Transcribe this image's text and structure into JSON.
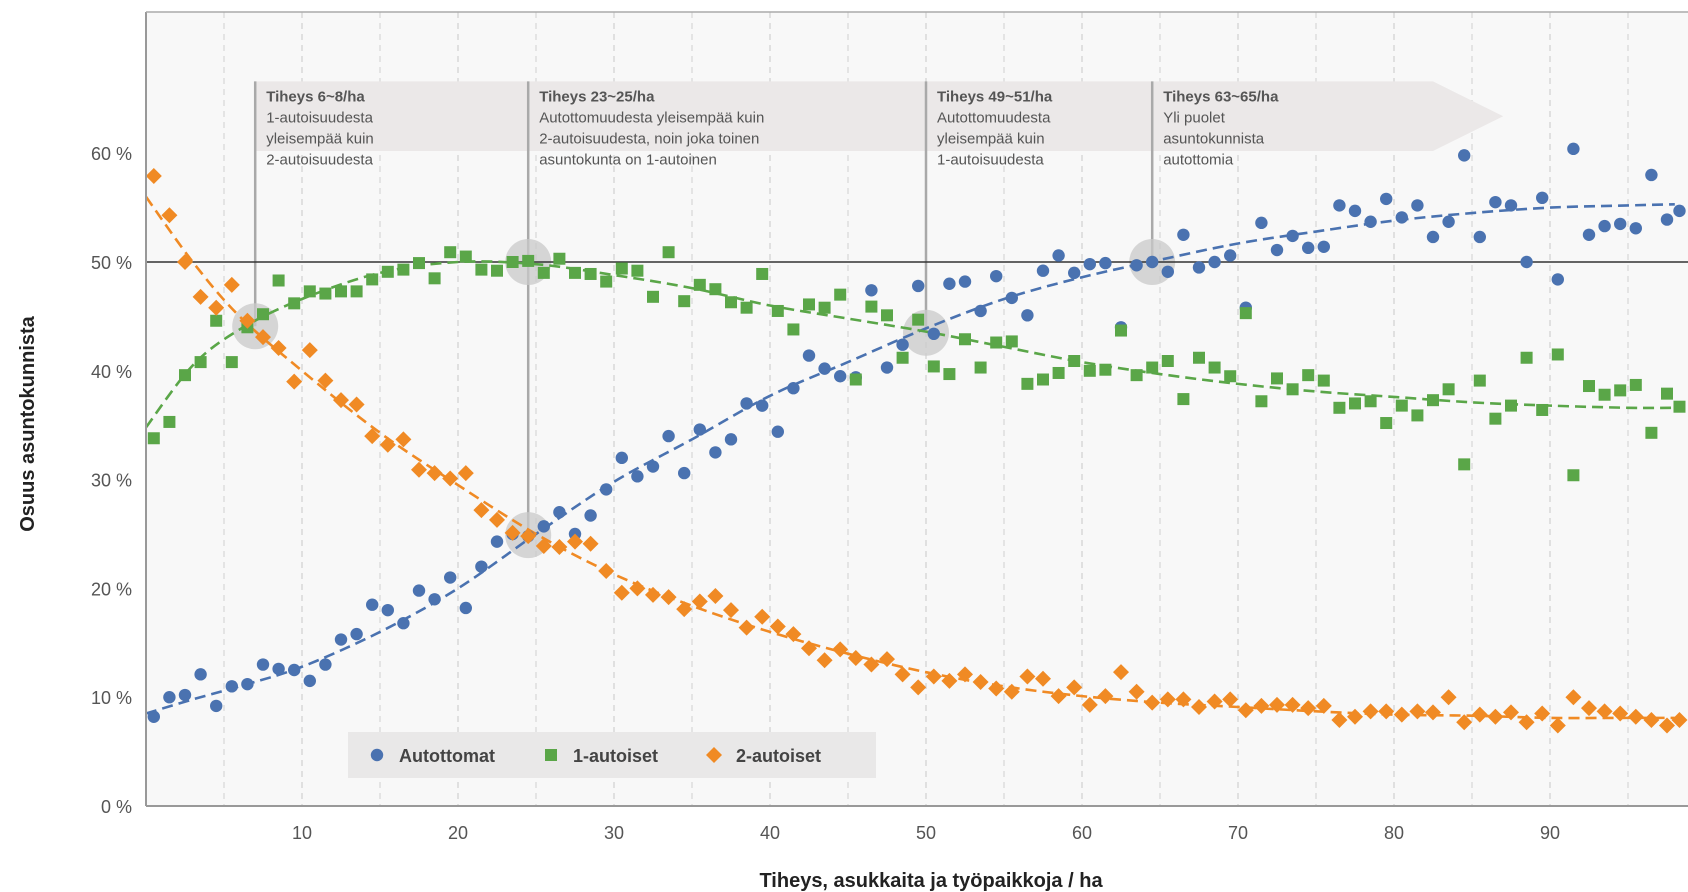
{
  "chart_data": {
    "type": "scatter",
    "xlabel": "Tiheys, asukkaita ja työpaikkoja / ha",
    "ylabel": "Osuus asuntokunnista",
    "xlim": [
      0,
      98
    ],
    "ylim": [
      0,
      72
    ],
    "x_ticks": [
      10,
      20,
      30,
      40,
      50,
      60,
      70,
      80,
      90
    ],
    "y_ticks": [
      {
        "value": 0,
        "label": "0 %"
      },
      {
        "value": 10,
        "label": "10 %"
      },
      {
        "value": 20,
        "label": "20 %"
      },
      {
        "value": 30,
        "label": "30 %"
      },
      {
        "value": 40,
        "label": "40 %"
      },
      {
        "value": 50,
        "label": "50 %"
      },
      {
        "value": 60,
        "label": "60 %"
      }
    ],
    "reference_line": 50,
    "grid": "vertical dashed",
    "legend_position": "bottom-left",
    "series": [
      {
        "name": "Autottomat",
        "color": "#4a72b0",
        "marker": "circle",
        "x": [
          0.5,
          1.5,
          2.5,
          3.5,
          4.5,
          5.5,
          6.5,
          7.5,
          8.5,
          9.5,
          10.5,
          11.5,
          12.5,
          13.5,
          14.5,
          15.5,
          16.5,
          17.5,
          18.5,
          19.5,
          20.5,
          21.5,
          22.5,
          23.5,
          24.5,
          25.5,
          26.5,
          27.5,
          28.5,
          29.5,
          30.5,
          31.5,
          32.5,
          33.5,
          34.5,
          35.5,
          36.5,
          37.5,
          38.5,
          39.5,
          40.5,
          41.5,
          42.5,
          43.5,
          44.5,
          45.5,
          46.5,
          47.5,
          48.5,
          49.5,
          50.5,
          51.5,
          52.5,
          53.5,
          54.5,
          55.5,
          56.5,
          57.5,
          58.5,
          59.5,
          60.5,
          61.5,
          62.5,
          63.5,
          64.5,
          65.5,
          66.5,
          67.5,
          68.5,
          69.5,
          70.5,
          71.5,
          72.5,
          73.5,
          74.5,
          75.5,
          76.5,
          77.5,
          78.5,
          79.5,
          80.5,
          81.5,
          82.5,
          83.5,
          84.5,
          85.5,
          86.5,
          87.5,
          88.5,
          89.5,
          90.5,
          91.5,
          92.5,
          93.5,
          94.5,
          95.5,
          96.5,
          97.5,
          98.3
        ],
        "values": [
          8.2,
          10,
          10.2,
          12.1,
          9.2,
          11,
          11.2,
          13,
          12.6,
          12.5,
          11.5,
          13,
          15.3,
          15.8,
          18.5,
          18,
          16.8,
          19.8,
          19,
          21,
          18.2,
          22,
          24.3,
          25,
          24.8,
          25.7,
          27,
          25,
          26.7,
          29.1,
          32,
          30.3,
          31.2,
          34,
          30.6,
          34.6,
          32.5,
          33.7,
          37,
          36.8,
          34.4,
          38.4,
          41.4,
          40.2,
          39.5,
          39.4,
          47.4,
          40.3,
          42.4,
          47.8,
          43.4,
          48,
          48.2,
          45.5,
          48.7,
          46.7,
          45.1,
          49.2,
          50.6,
          49,
          49.8,
          49.9,
          44,
          49.7,
          50,
          49.1,
          52.5,
          49.5,
          50,
          50.6,
          45.8,
          53.6,
          51.1,
          52.4,
          51.3,
          51.4,
          55.2,
          54.7,
          53.7,
          55.8,
          54.1,
          55.2,
          52.3,
          53.7,
          59.8,
          52.3,
          55.5,
          55.2,
          50,
          55.9,
          48.4,
          60.4,
          52.5,
          53.3,
          53.5,
          53.1,
          58,
          53.9,
          54.7
        ]
      },
      {
        "name": "1-autoiset",
        "color": "#5aa648",
        "marker": "square",
        "x": [
          0.5,
          1.5,
          2.5,
          3.5,
          4.5,
          5.5,
          6.5,
          7.5,
          8.5,
          9.5,
          10.5,
          11.5,
          12.5,
          13.5,
          14.5,
          15.5,
          16.5,
          17.5,
          18.5,
          19.5,
          20.5,
          21.5,
          22.5,
          23.5,
          24.5,
          25.5,
          26.5,
          27.5,
          28.5,
          29.5,
          30.5,
          31.5,
          32.5,
          33.5,
          34.5,
          35.5,
          36.5,
          37.5,
          38.5,
          39.5,
          40.5,
          41.5,
          42.5,
          43.5,
          44.5,
          45.5,
          46.5,
          47.5,
          48.5,
          49.5,
          50.5,
          51.5,
          52.5,
          53.5,
          54.5,
          55.5,
          56.5,
          57.5,
          58.5,
          59.5,
          60.5,
          61.5,
          62.5,
          63.5,
          64.5,
          65.5,
          66.5,
          67.5,
          68.5,
          69.5,
          70.5,
          71.5,
          72.5,
          73.5,
          74.5,
          75.5,
          76.5,
          77.5,
          78.5,
          79.5,
          80.5,
          81.5,
          82.5,
          83.5,
          84.5,
          85.5,
          86.5,
          87.5,
          88.5,
          89.5,
          90.5,
          91.5,
          92.5,
          93.5,
          94.5,
          95.5,
          96.5,
          97.5,
          98.3
        ],
        "values": [
          33.8,
          35.3,
          39.6,
          40.8,
          44.6,
          40.8,
          44,
          45.2,
          48.3,
          46.2,
          47.3,
          47.1,
          47.3,
          47.3,
          48.4,
          49.1,
          49.3,
          49.9,
          48.5,
          50.9,
          50.5,
          49.3,
          49.2,
          50,
          50.1,
          49,
          50.3,
          49,
          48.9,
          48.2,
          49.4,
          49.2,
          46.8,
          50.9,
          46.4,
          47.9,
          47.5,
          46.3,
          45.8,
          48.9,
          45.5,
          43.8,
          46.1,
          45.8,
          47,
          39.2,
          45.9,
          45.1,
          41.2,
          44.7,
          40.4,
          39.7,
          42.9,
          40.3,
          42.6,
          42.7,
          38.8,
          39.2,
          39.8,
          40.9,
          40,
          40.1,
          43.7,
          39.6,
          40.3,
          40.9,
          37.4,
          41.2,
          40.3,
          39.5,
          45.3,
          37.2,
          39.3,
          38.3,
          39.6,
          39.1,
          36.6,
          37,
          37.2,
          35.2,
          36.8,
          35.9,
          37.3,
          38.3,
          31.4,
          39.1,
          35.6,
          36.8,
          41.2,
          36.4,
          41.5,
          30.4,
          38.6,
          37.8,
          38.2,
          38.7,
          34.3,
          37.9,
          36.7
        ]
      },
      {
        "name": "2-autoiset",
        "color": "#f08a24",
        "marker": "diamond",
        "x": [
          0.5,
          1.5,
          2.5,
          3.5,
          4.5,
          5.5,
          6.5,
          7.5,
          8.5,
          9.5,
          10.5,
          11.5,
          12.5,
          13.5,
          14.5,
          15.5,
          16.5,
          17.5,
          18.5,
          19.5,
          20.5,
          21.5,
          22.5,
          23.5,
          24.5,
          25.5,
          26.5,
          27.5,
          28.5,
          29.5,
          30.5,
          31.5,
          32.5,
          33.5,
          34.5,
          35.5,
          36.5,
          37.5,
          38.5,
          39.5,
          40.5,
          41.5,
          42.5,
          43.5,
          44.5,
          45.5,
          46.5,
          47.5,
          48.5,
          49.5,
          50.5,
          51.5,
          52.5,
          53.5,
          54.5,
          55.5,
          56.5,
          57.5,
          58.5,
          59.5,
          60.5,
          61.5,
          62.5,
          63.5,
          64.5,
          65.5,
          66.5,
          67.5,
          68.5,
          69.5,
          70.5,
          71.5,
          72.5,
          73.5,
          74.5,
          75.5,
          76.5,
          77.5,
          78.5,
          79.5,
          80.5,
          81.5,
          82.5,
          83.5,
          84.5,
          85.5,
          86.5,
          87.5,
          88.5,
          89.5,
          90.5,
          91.5,
          92.5,
          93.5,
          94.5,
          95.5,
          96.5,
          97.5,
          98.3
        ],
        "values": [
          57.9,
          54.3,
          50,
          46.8,
          45.8,
          47.9,
          44.6,
          43.1,
          42.1,
          39,
          41.9,
          39.1,
          37.3,
          36.9,
          34,
          33.2,
          33.7,
          30.9,
          30.6,
          30.1,
          30.6,
          27.2,
          26.3,
          25.1,
          24.8,
          23.9,
          23.8,
          24.3,
          24.1,
          21.6,
          19.6,
          20,
          19.4,
          19.2,
          18.1,
          18.8,
          19.3,
          18,
          16.4,
          17.4,
          16.5,
          15.8,
          14.5,
          13.4,
          14.4,
          13.6,
          13,
          13.5,
          12.1,
          10.9,
          11.9,
          11.5,
          12.1,
          11.4,
          10.8,
          10.5,
          11.9,
          11.7,
          10.1,
          10.9,
          9.3,
          10.1,
          12.3,
          10.5,
          9.5,
          9.8,
          9.8,
          9.1,
          9.6,
          9.8,
          8.8,
          9.2,
          9.3,
          9.3,
          9,
          9.2,
          7.9,
          8.2,
          8.7,
          8.7,
          8.4,
          8.7,
          8.6,
          10,
          7.7,
          8.4,
          8.2,
          8.6,
          7.7,
          8.5,
          7.4,
          10,
          9,
          8.7,
          8.5,
          8.2,
          7.9,
          7.4,
          7.9
        ]
      }
    ],
    "trend_lines": {
      "Autottomat": {
        "x": [
          0,
          3,
          6,
          10,
          15,
          20,
          25,
          30,
          35,
          40,
          45,
          50,
          55,
          60,
          65,
          70,
          75,
          80,
          85,
          90,
          95,
          98
        ],
        "values": [
          8.5,
          9.8,
          11,
          12.8,
          16,
          20,
          25,
          29.8,
          33.7,
          37.7,
          40.8,
          43.9,
          46.6,
          48.6,
          50.2,
          51.7,
          52.8,
          53.8,
          54.5,
          55,
          55.2,
          55.3
        ]
      },
      "1-autoiset": {
        "x": [
          0,
          3,
          6,
          10,
          15,
          20,
          25,
          30,
          35,
          40,
          45,
          50,
          55,
          60,
          65,
          70,
          75,
          80,
          85,
          90,
          95,
          98
        ],
        "values": [
          34.8,
          40.5,
          43.8,
          46.6,
          49,
          50,
          49.8,
          48.8,
          47.6,
          46,
          44.8,
          43.6,
          42.2,
          40.8,
          39.7,
          38.8,
          38.1,
          37.6,
          37.1,
          36.8,
          36.6,
          36.6
        ]
      },
      "2-autoiset": {
        "x": [
          0,
          3,
          6,
          10,
          15,
          20,
          25,
          30,
          35,
          40,
          45,
          50,
          55,
          60,
          65,
          70,
          75,
          80,
          85,
          90,
          95,
          98
        ],
        "values": [
          56,
          50,
          45,
          40,
          34.3,
          29.5,
          25,
          21.3,
          18.4,
          16,
          14,
          12.3,
          11,
          10.1,
          9.5,
          9.1,
          8.7,
          8.4,
          8.3,
          8.1,
          8.1,
          8.1
        ]
      }
    },
    "intersections": [
      {
        "x": 7,
        "y": 44.1
      },
      {
        "x": 24.5,
        "y": 50
      },
      {
        "x": 24.5,
        "y": 24.9
      },
      {
        "x": 50,
        "y": 43.5
      },
      {
        "x": 64.5,
        "y": 50
      }
    ],
    "annotations": [
      {
        "x": 7,
        "title": "Tiheys 6~8/ha",
        "lines": [
          "1-autoisuudesta",
          "yleisempää kuin",
          "2-autoisuudesta"
        ]
      },
      {
        "x": 24.5,
        "title": "Tiheys 23~25/ha",
        "lines": [
          "Autottomuudesta yleisempää kuin",
          "2-autoisuudesta, noin joka toinen",
          "asuntokunta on 1-autoinen"
        ]
      },
      {
        "x": 50,
        "title": "Tiheys 49~51/ha",
        "lines": [
          "Autottomuudesta",
          "yleisempää kuin",
          "1-autoisuudesta"
        ]
      },
      {
        "x": 64.5,
        "title": "Tiheys 63~65/ha",
        "lines": [
          "Yli puolet",
          "asuntokunnista",
          "autottomia"
        ]
      }
    ],
    "annotation_band": {
      "x_end": 82.5,
      "arrow_tip": 87,
      "y_top": 66.6,
      "y_bottom": 60.2
    }
  }
}
